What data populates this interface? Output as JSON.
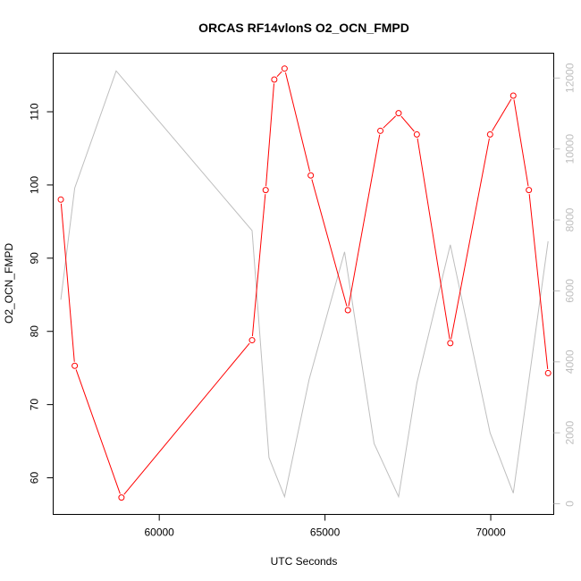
{
  "chart_data": {
    "type": "line",
    "title": "ORCAS RF14vlonS O2_OCN_FMPD",
    "xlabel": "UTC Seconds",
    "ylabel": "O2_OCN_FMPD",
    "xlim": [
      56800,
      71900
    ],
    "ylim": [
      55.0,
      118.0
    ],
    "y2lim": [
      -300,
      12700
    ],
    "grid": false,
    "x_ticks": [
      60000,
      65000,
      70000
    ],
    "x_tick_labels": [
      "60000",
      "65000",
      "70000"
    ],
    "y_ticks": [
      60,
      70,
      80,
      90,
      100,
      110
    ],
    "y_tick_labels": [
      "60",
      "70",
      "80",
      "90",
      "100",
      "110"
    ],
    "y2_ticks": [
      0,
      2000,
      4000,
      6000,
      8000,
      10000,
      12000
    ],
    "y2_tick_labels": [
      "0",
      "2000",
      "4000",
      "6000",
      "8000",
      "10000",
      "12000"
    ],
    "series": [
      {
        "axis": "left",
        "color": "#ff0000",
        "marker": "open-circle",
        "x": [
          57030,
          57450,
          58860,
          62800,
          63210,
          63470,
          63780,
          64570,
          65690,
          66670,
          67220,
          67770,
          68780,
          69980,
          70680,
          71150,
          71730
        ],
        "y": [
          98.0,
          75.3,
          57.3,
          78.8,
          99.3,
          114.4,
          115.9,
          101.3,
          82.9,
          107.4,
          109.8,
          106.9,
          78.4,
          106.9,
          112.2,
          99.3,
          74.3
        ]
      },
      {
        "axis": "right",
        "color": "#bebebe",
        "marker": "none",
        "x": [
          57030,
          57450,
          58700,
          62800,
          63310,
          63780,
          64520,
          65590,
          66480,
          67220,
          67770,
          68780,
          69980,
          70680,
          71730
        ],
        "y": [
          5750,
          8900,
          12200,
          7700,
          1300,
          200,
          3500,
          7100,
          1700,
          200,
          3400,
          7300,
          2000,
          300,
          7400
        ]
      }
    ]
  }
}
